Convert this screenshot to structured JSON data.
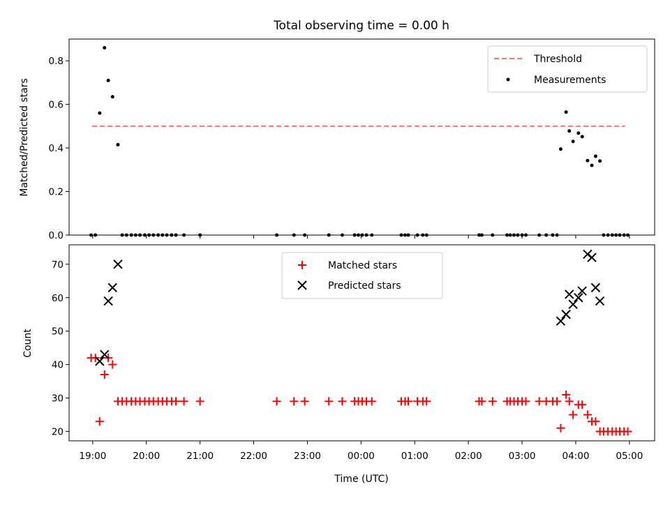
{
  "chart_data": {
    "title": "Total observing time = 0.00 h",
    "xlabel": "Time (UTC)",
    "x_unit": "hours (UTC), values >= 24 continue past midnight",
    "xlim": [
      18.56,
      29.47
    ],
    "xticks": [
      {
        "value": 19,
        "label": "19:00"
      },
      {
        "value": 20,
        "label": "20:00"
      },
      {
        "value": 21,
        "label": "21:00"
      },
      {
        "value": 22,
        "label": "22:00"
      },
      {
        "value": 23,
        "label": "23:00"
      },
      {
        "value": 24,
        "label": "00:00"
      },
      {
        "value": 25,
        "label": "01:00"
      },
      {
        "value": 26,
        "label": "02:00"
      },
      {
        "value": 27,
        "label": "03:00"
      },
      {
        "value": 28,
        "label": "04:00"
      },
      {
        "value": 29,
        "label": "05:00"
      }
    ],
    "panels": [
      {
        "type": "scatter",
        "ylabel": "Matched/Predicted stars",
        "ylim": [
          0,
          0.9
        ],
        "yticks": [
          0.0,
          0.2,
          0.4,
          0.6,
          0.8
        ],
        "ytick_labels": [
          "0.0",
          "0.2",
          "0.4",
          "0.6",
          "0.8"
        ],
        "legend_position": "upper right",
        "series": [
          {
            "name": "Threshold",
            "type": "line",
            "style": "dashed",
            "color": "#ff7373",
            "x": [
              18.99,
              28.92
            ],
            "y": [
              0.5,
              0.5
            ]
          },
          {
            "name": "Measurements",
            "type": "scatter",
            "color": "#000000",
            "x": [
              18.97,
              19.05,
              19.13,
              19.22,
              19.29,
              19.37,
              19.47,
              19.55,
              19.63,
              19.72,
              19.8,
              19.88,
              19.97,
              20.05,
              20.13,
              20.22,
              20.3,
              20.38,
              20.47,
              20.55,
              20.7,
              21.0,
              22.43,
              22.75,
              22.95,
              23.4,
              23.65,
              23.88,
              23.95,
              24.02,
              24.1,
              24.2,
              24.75,
              24.82,
              24.88,
              25.05,
              25.15,
              25.22,
              26.2,
              26.25,
              26.45,
              26.72,
              26.78,
              26.85,
              26.92,
              27.0,
              27.07,
              27.32,
              27.45,
              27.57,
              27.65,
              27.72,
              27.82,
              27.88,
              27.95,
              28.05,
              28.12,
              28.22,
              28.3,
              28.37,
              28.45,
              28.52,
              28.6,
              28.68,
              28.75,
              28.82,
              28.9,
              28.97
            ],
            "y": [
              0,
              0,
              0.56,
              0.86,
              0.71,
              0.635,
              0.415,
              0,
              0,
              0,
              0,
              0,
              0,
              0,
              0,
              0,
              0,
              0,
              0,
              0,
              0,
              0,
              0,
              0,
              0,
              0,
              0,
              0,
              0,
              0,
              0,
              0,
              0,
              0,
              0,
              0,
              0,
              0,
              0,
              0,
              0,
              0,
              0,
              0,
              0,
              0,
              0,
              0,
              0,
              0,
              0,
              0.395,
              0.565,
              0.478,
              0.43,
              0.468,
              0.452,
              0.342,
              0.32,
              0.362,
              0.34,
              0,
              0,
              0,
              0,
              0,
              0,
              0
            ]
          }
        ]
      },
      {
        "type": "scatter",
        "ylabel": "Count",
        "ylim": [
          17.2,
          75.8
        ],
        "yticks": [
          20,
          30,
          40,
          50,
          60,
          70
        ],
        "ytick_labels": [
          "20",
          "30",
          "40",
          "50",
          "60",
          "70"
        ],
        "legend_position": "upper center",
        "series": [
          {
            "name": "Matched stars",
            "marker": "plus",
            "color": "#ff0000",
            "x": [
              18.97,
              19.05,
              19.13,
              19.22,
              19.29,
              19.37,
              19.47,
              19.55,
              19.63,
              19.72,
              19.8,
              19.88,
              19.97,
              20.05,
              20.13,
              20.22,
              20.3,
              20.38,
              20.47,
              20.55,
              20.7,
              21.0,
              22.43,
              22.75,
              22.95,
              23.4,
              23.65,
              23.88,
              23.95,
              24.02,
              24.1,
              24.2,
              24.75,
              24.82,
              24.88,
              25.05,
              25.15,
              25.22,
              26.2,
              26.25,
              26.45,
              26.72,
              26.78,
              26.85,
              26.92,
              27.0,
              27.07,
              27.32,
              27.45,
              27.57,
              27.65,
              27.72,
              27.82,
              27.88,
              27.95,
              28.05,
              28.12,
              28.22,
              28.3,
              28.37,
              28.45,
              28.52,
              28.6,
              28.68,
              28.75,
              28.82,
              28.9,
              28.97
            ],
            "y": [
              42,
              42,
              23,
              37,
              42,
              40,
              29,
              29,
              29,
              29,
              29,
              29,
              29,
              29,
              29,
              29,
              29,
              29,
              29,
              29,
              29,
              29,
              29,
              29,
              29,
              29,
              29,
              29,
              29,
              29,
              29,
              29,
              29,
              29,
              29,
              29,
              29,
              29,
              29,
              29,
              29,
              29,
              29,
              29,
              29,
              29,
              29,
              29,
              29,
              29,
              29,
              21,
              31,
              29,
              25,
              28,
              28,
              25,
              23,
              23,
              20,
              20,
              20,
              20,
              20,
              20,
              20,
              20
            ]
          },
          {
            "name": "Predicted stars",
            "marker": "x",
            "color": "#000000",
            "x": [
              19.13,
              19.22,
              19.29,
              19.37,
              19.47,
              27.72,
              27.82,
              27.88,
              27.95,
              28.05,
              28.12,
              28.22,
              28.3,
              28.37,
              28.45
            ],
            "y": [
              41,
              43,
              59,
              63,
              70,
              53,
              55,
              61,
              58,
              60,
              62,
              73,
              72,
              63,
              59
            ]
          }
        ]
      }
    ]
  }
}
